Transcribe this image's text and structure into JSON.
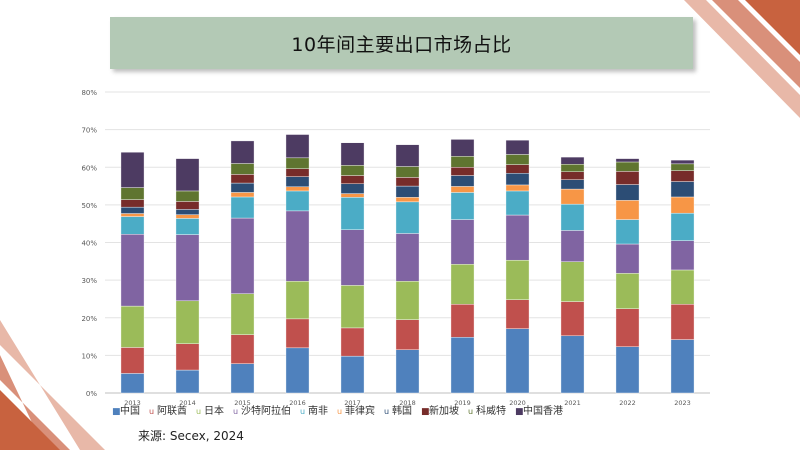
{
  "slide": {
    "title": "10年间主要出口市场占比",
    "source": "来源: Secex, 2024"
  },
  "chart_data": {
    "type": "bar",
    "stacked": true,
    "title": "10年间主要出口市场占比",
    "xlabel": "",
    "ylabel": "",
    "ylim": [
      0,
      80
    ],
    "yticks": [
      "0%",
      "10%",
      "20%",
      "30%",
      "40%",
      "50%",
      "60%",
      "70%",
      "80%"
    ],
    "grid": true,
    "legend_position": "bottom",
    "categories": [
      "2013",
      "2014",
      "2015",
      "2016",
      "2017",
      "2018",
      "2019",
      "2020",
      "2021",
      "2022",
      "2023"
    ],
    "series": [
      {
        "name": "中国",
        "marker": "■",
        "color": "#4f81bd",
        "values": [
          5.2,
          6.1,
          7.8,
          12.0,
          9.8,
          11.5,
          14.8,
          17.1,
          15.2,
          12.3,
          14.2
        ]
      },
      {
        "name": "阿联酋",
        "marker": "u",
        "color": "#c0504d",
        "values": [
          6.9,
          7.0,
          7.7,
          7.7,
          7.5,
          8.0,
          8.8,
          7.7,
          9.1,
          10.1,
          9.4
        ]
      },
      {
        "name": "日本",
        "marker": "u",
        "color": "#9bbb59",
        "values": [
          11.0,
          11.4,
          10.9,
          10.0,
          11.3,
          10.2,
          10.6,
          10.5,
          10.6,
          9.4,
          9.1
        ]
      },
      {
        "name": "沙特阿拉伯",
        "marker": "u",
        "color": "#8064a2",
        "values": [
          19.1,
          17.6,
          20.1,
          18.7,
          14.8,
          12.7,
          11.9,
          12.0,
          8.3,
          7.8,
          7.8
        ]
      },
      {
        "name": "南非",
        "marker": "u",
        "color": "#4bacc6",
        "values": [
          4.7,
          4.3,
          5.6,
          5.3,
          8.6,
          8.4,
          7.2,
          6.4,
          7.0,
          6.5,
          7.3
        ]
      },
      {
        "name": "菲律宾",
        "marker": "u",
        "color": "#f79646",
        "values": [
          0.8,
          1.0,
          1.2,
          1.1,
          1.0,
          1.2,
          1.6,
          1.6,
          4.0,
          5.1,
          4.3
        ]
      },
      {
        "name": "韩国",
        "marker": "u",
        "color": "#2c4d75",
        "values": [
          1.7,
          1.4,
          2.5,
          2.7,
          2.6,
          3.0,
          2.9,
          3.1,
          2.5,
          4.2,
          4.1
        ]
      },
      {
        "name": "新加坡",
        "marker": "■",
        "color": "#772c2a",
        "values": [
          2.0,
          2.1,
          2.3,
          2.1,
          2.2,
          2.3,
          2.2,
          2.3,
          2.1,
          3.5,
          2.9
        ]
      },
      {
        "name": "科威特",
        "marker": "u",
        "color": "#5f7530",
        "values": [
          3.2,
          2.8,
          2.9,
          2.9,
          2.7,
          2.9,
          2.9,
          2.7,
          2.0,
          2.5,
          1.8
        ]
      },
      {
        "name": "中国香港",
        "marker": "■",
        "color": "#4d3b62",
        "values": [
          9.4,
          8.6,
          6.0,
          6.2,
          6.0,
          5.8,
          4.5,
          3.8,
          1.9,
          0.9,
          1.0
        ]
      }
    ]
  }
}
